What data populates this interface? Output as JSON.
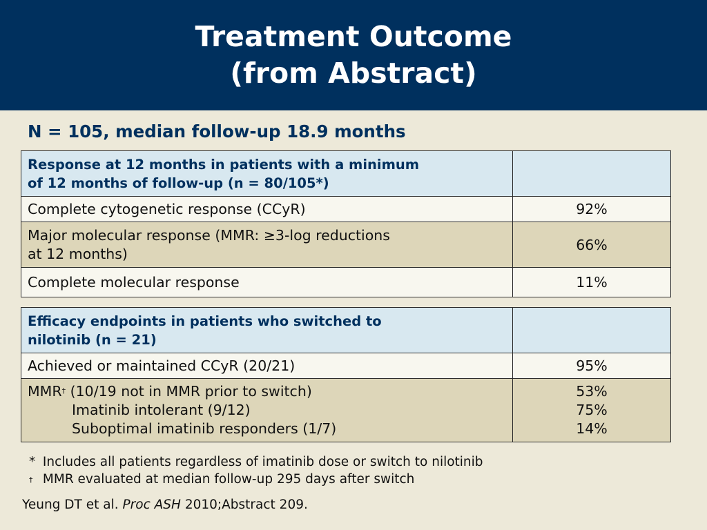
{
  "header": {
    "title_line1": "Treatment Outcome",
    "title_line2": "(from Abstract)"
  },
  "subtitle": "N = 105, median follow-up 18.9 months",
  "table1": {
    "header_line1": "Response at 12 months in patients with a minimum",
    "header_line2": "of 12 months of follow-up  (n = 80/105*)",
    "rows": [
      {
        "label_line1": "Complete cytogenetic response (CCyR)",
        "value": "92%"
      },
      {
        "label_line1": "Major molecular response (MMR: ≥3-log reductions",
        "label_line2": "at 12 months)",
        "value": "66%"
      },
      {
        "label_line1": "Complete molecular response",
        "value": "11%"
      }
    ]
  },
  "table2": {
    "header_line1": "Efficacy endpoints in patients who switched to",
    "header_line2": "nilotinib (n = 21)",
    "rows": [
      {
        "label": "Achieved or maintained CCyR (20/21)",
        "value": "95%"
      },
      {
        "label_prefix": "MMR",
        "label_mark": "†",
        "label_rest": " (10/19 not in MMR prior to switch)",
        "sub_line1": "Imatinib intolerant (9/12)",
        "sub_line2": "Suboptimal imatinib responders (1/7)",
        "value1": "53%",
        "value2": "75%",
        "value3": "14%"
      }
    ]
  },
  "footnotes": [
    {
      "mark": "*",
      "text": "Includes all patients regardless of imatinib dose or switch to nilotinib"
    },
    {
      "mark": "†",
      "text": "MMR evaluated at median follow-up 295 days after switch"
    }
  ],
  "reference": {
    "authors": "Yeung DT et al. ",
    "journal": "Proc ASH",
    "details": " 2010;Abstract 209."
  }
}
